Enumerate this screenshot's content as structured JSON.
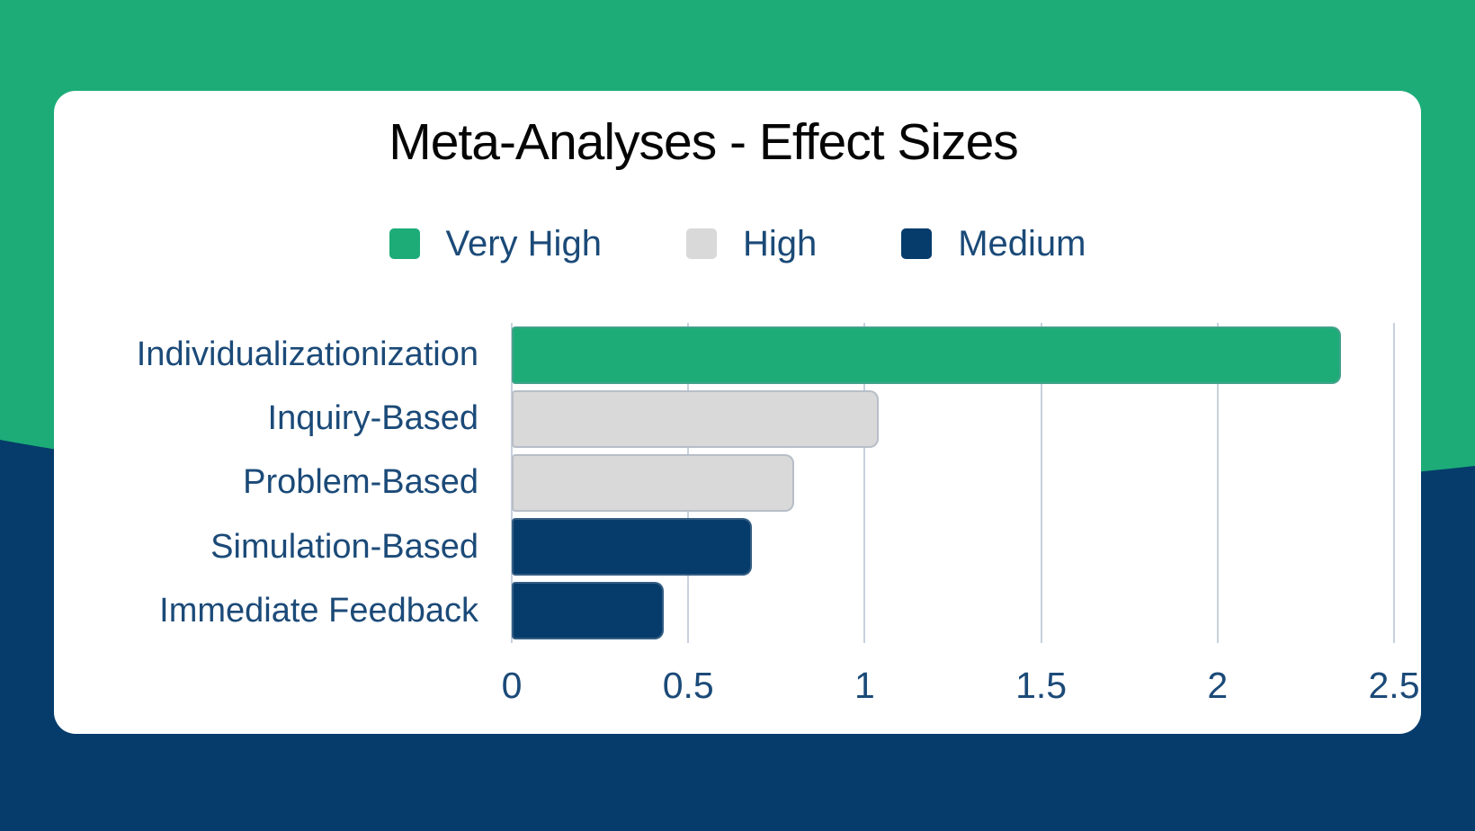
{
  "page": {
    "background_top_color": "#1DAC78",
    "background_bottom_color": "#063C6B",
    "card_color": "#FFFFFF"
  },
  "legend": {
    "items": [
      {
        "label": "Very High",
        "color": "#1DAC78"
      },
      {
        "label": "High",
        "color": "#D9D9D9"
      },
      {
        "label": "Medium",
        "color": "#063C6B"
      }
    ]
  },
  "chart_data": {
    "type": "bar",
    "orientation": "horizontal",
    "title": "Meta-Analyses - Effect Sizes",
    "categories": [
      "Individualizationization",
      "Inquiry-Based",
      "Problem-Based",
      "Simulation-Based",
      "Immediate Feedback"
    ],
    "values": [
      2.35,
      1.04,
      0.8,
      0.68,
      0.43
    ],
    "bar_levels": [
      "Very High",
      "High",
      "High",
      "Medium",
      "Medium"
    ],
    "level_colors": {
      "Very High": "#1DAC78",
      "High": "#D9D9D9",
      "Medium": "#063C6B"
    },
    "xlabel": "",
    "ylabel": "",
    "xlim": [
      0,
      2.5
    ],
    "xticks": [
      {
        "value": 0,
        "label": "0"
      },
      {
        "value": 0.5,
        "label": "0.5"
      },
      {
        "value": 1,
        "label": "1"
      },
      {
        "value": 1.5,
        "label": "1.5"
      },
      {
        "value": 2,
        "label": "2"
      },
      {
        "value": 2.5,
        "label": "2.5"
      }
    ],
    "grid": "vertical-gridlines-on",
    "legend_position": "top-center",
    "text_color": "#1B4A78",
    "gridline_color": "#C7D1DD"
  }
}
